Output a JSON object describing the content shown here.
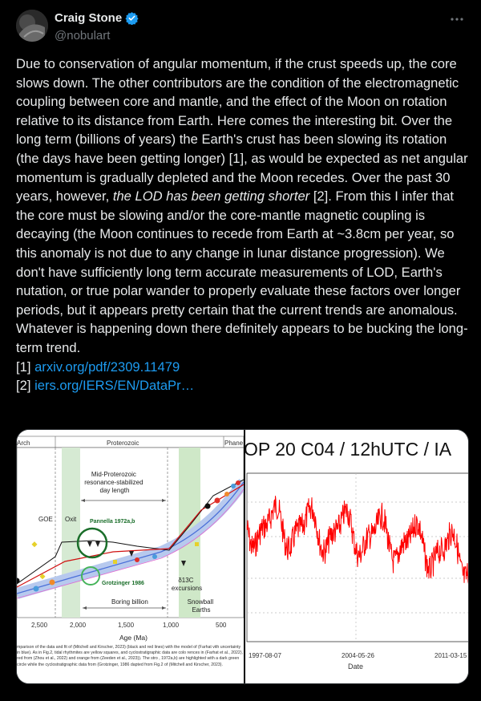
{
  "author": {
    "display_name": "Craig Stone",
    "handle": "@nobulart"
  },
  "post": {
    "p1": "Due to conservation of angular momentum, if the crust speeds up, the core slows down. The other contributors are the condition of the electromagnetic coupling between core and mantle, and the effect of the Moon on rotation relative to its distance from Earth. Here comes the interesting bit. Over the long term (billions of years) the Earth's crust has been slowing its rotation (the days have been getting longer) [1], as would be expected as net angular momentum is gradually depleted and the Moon recedes. Over the past 30 years, however, ",
    "p1_em": "the LOD has been getting shorter",
    "p2": " [2]. From this I infer that the core must be slowing and/or the core-mantle magnetic coupling is decaying (the Moon continues to recede from Earth at ~3.8cm per year, so this anomaly is not due to any change in lunar distance progression). We don't have sufficiently long term accurate measurements of LOD, Earth's nutation, or true polar wander to properly evaluate these factors over longer periods, but it appears pretty certain that the current trends are anomalous. Whatever is happening down there definitely appears to be bucking the long-term trend.",
    "ref1_prefix": "[1] ",
    "ref1_link": "arxiv.org/pdf/2309.11479",
    "ref2_prefix": "[2] ",
    "ref2_link": "iers.org/IERS/EN/DataPr…"
  },
  "figure_left": {
    "era_arch": "Arch",
    "era_proterozoic": "Proterozoic",
    "era_phane": "Phane",
    "annotation_resonance": "Mid-Proterozoic\nresonance-stabilized\nday length",
    "label_goe": "GOE",
    "label_oxit": "Oxit",
    "label_pannella": "Pannella 1972a,b",
    "label_grotzinger": "Grotzinger 1986",
    "label_carbon": "δ13C\nexcursions",
    "label_boring": "Boring billion",
    "label_snowball": "Snowball\nEarths",
    "x_ticks": [
      "2,500",
      "2,000",
      "1,500",
      "1,000",
      "500"
    ],
    "x_axis_label": "Age (Ma)",
    "caption": "mparison of the data and fit of (Mitchell and Kirscher, 2023) (black and red lines) with the model of (Farhat vith uncertainty in blue). As in Fig.2, tidal rhythmites are yellow squares, and cyclostratigraphic data are colo rences in (Farhat et al., 2022), red from (Zhou et al., 2022) and orange from (Zeeden et al., 2023)). The stro , 1972a,b) are highlighted with a dark green circle while the cyclostratigraphic data from (Grotzinger, 1986 dapted from Fig.2 of (Mitchell and Kirscher, 2023)."
  },
  "figure_right": {
    "title_fragment": "OP 20 C04 / 12hUTC / IA",
    "x_ticks": [
      "1997-08-07",
      "2004-05-26",
      "2011-03-15"
    ],
    "x_axis_label": "Date"
  },
  "colors": {
    "link": "#1d9bf0",
    "verified": "#1d9bf0",
    "series_red": "#ff0000",
    "goe_band": "#d6ead3",
    "snowball_band": "#cfe8c8"
  }
}
